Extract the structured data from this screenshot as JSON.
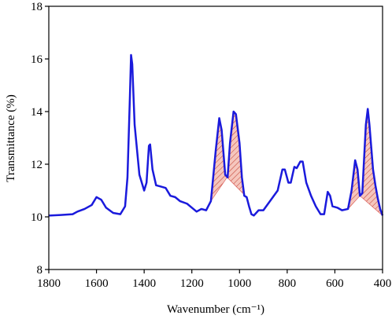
{
  "chart_data": {
    "type": "line",
    "xlabel": "Wavenumber (cm⁻¹)",
    "ylabel": "Transmittance (%)",
    "xlim": [
      1800,
      400
    ],
    "ylim": [
      8,
      18
    ],
    "xticks": [
      1800,
      1600,
      1400,
      1200,
      1000,
      800,
      600,
      400
    ],
    "yticks": [
      8,
      10,
      12,
      14,
      16,
      18
    ],
    "series": [
      {
        "color": "#1a1adc",
        "x": [
          1800,
          1750,
          1700,
          1680,
          1650,
          1620,
          1600,
          1580,
          1560,
          1530,
          1500,
          1480,
          1470,
          1460,
          1455,
          1450,
          1440,
          1420,
          1400,
          1390,
          1380,
          1375,
          1365,
          1350,
          1330,
          1310,
          1290,
          1270,
          1250,
          1220,
          1200,
          1180,
          1160,
          1140,
          1120,
          1100,
          1085,
          1075,
          1060,
          1050,
          1040,
          1025,
          1015,
          1000,
          990,
          980,
          970,
          960,
          950,
          940,
          920,
          900,
          880,
          860,
          840,
          820,
          810,
          795,
          785,
          770,
          760,
          745,
          735,
          720,
          700,
          680,
          660,
          645,
          630,
          620,
          610,
          590,
          570,
          545,
          530,
          515,
          505,
          495,
          485,
          470,
          462,
          455,
          440,
          430,
          420,
          410,
          400
        ],
        "values": [
          10.05,
          10.07,
          10.1,
          10.2,
          10.3,
          10.45,
          10.75,
          10.65,
          10.35,
          10.15,
          10.1,
          10.4,
          11.5,
          14.5,
          16.15,
          15.8,
          13.5,
          11.6,
          11.0,
          11.3,
          12.7,
          12.75,
          11.8,
          11.2,
          11.15,
          11.1,
          10.8,
          10.75,
          10.6,
          10.5,
          10.35,
          10.2,
          10.3,
          10.25,
          10.6,
          12.5,
          13.75,
          13.3,
          11.6,
          11.5,
          12.8,
          14.0,
          13.9,
          12.8,
          11.5,
          10.8,
          10.75,
          10.4,
          10.1,
          10.05,
          10.25,
          10.25,
          10.5,
          10.75,
          11.0,
          11.8,
          11.8,
          11.3,
          11.3,
          11.9,
          11.85,
          12.1,
          12.1,
          11.3,
          10.8,
          10.4,
          10.1,
          10.1,
          10.95,
          10.8,
          10.4,
          10.35,
          10.25,
          10.3,
          11.0,
          12.15,
          11.8,
          10.8,
          10.9,
          13.5,
          14.1,
          13.5,
          11.8,
          11.2,
          10.7,
          10.3,
          10.05
        ]
      }
    ],
    "shaded_regions": [
      {
        "color": "#d9534f",
        "baseline_x": [
          1120,
          1052,
          970
        ],
        "baseline_y": [
          10.6,
          11.5,
          10.75
        ]
      },
      {
        "color": "#d9534f",
        "baseline_x": [
          545,
          495,
          400
        ],
        "baseline_y": [
          10.3,
          10.8,
          10.05
        ]
      }
    ]
  }
}
